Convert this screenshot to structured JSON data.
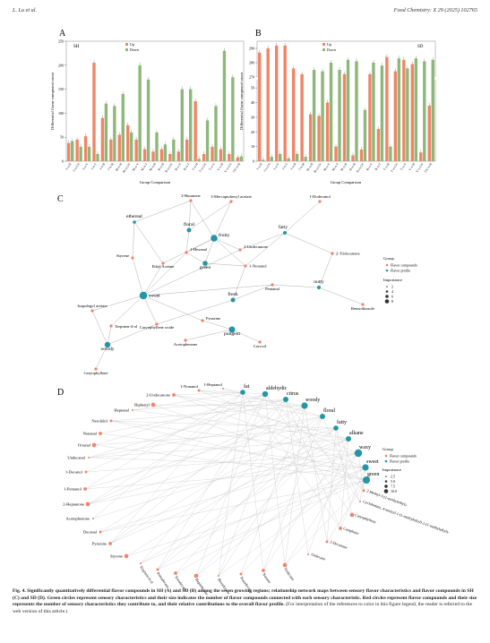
{
  "header": {
    "left": "L. Lu et al.",
    "right": "Food Chemistry: X 29 (2025) 102765"
  },
  "colors": {
    "up": "#f08566",
    "down": "#8db87a",
    "compound": "#f0826c",
    "profile": "#2196a6",
    "edge": "#c9c9c9"
  },
  "chart_data": [
    {
      "type": "bar",
      "panel_label": "A",
      "group_name": "SH",
      "ylabel": "Differential flavor compound count",
      "xlabel": "Group Comparison",
      "ylim": [
        0,
        250
      ],
      "yticks": [
        0,
        50,
        100,
        150,
        200,
        250
      ],
      "legend": [
        "Up",
        "Down"
      ],
      "categories": [
        "J vs H",
        "J vs GY",
        "J vs Y",
        "J vs T",
        "J vs B",
        "J vs M",
        "M vs H",
        "M vs GY",
        "M vs Y",
        "M vs T",
        "M vs B",
        "B vs H",
        "B vs GY",
        "B vs Y",
        "B vs T",
        "T vs H",
        "T vs GY",
        "T vs Y",
        "Y vs H",
        "Y vs GY",
        "GY vs H"
      ],
      "series": [
        {
          "name": "Up",
          "values": [
            38,
            45,
            52,
            205,
            90,
            45,
            55,
            75,
            45,
            25,
            20,
            25,
            15,
            20,
            45,
            125,
            15,
            30,
            25,
            15,
            8
          ]
        },
        {
          "name": "Down",
          "values": [
            42,
            30,
            30,
            15,
            120,
            115,
            140,
            60,
            200,
            170,
            60,
            35,
            45,
            150,
            150,
            5,
            85,
            115,
            230,
            175,
            10
          ]
        }
      ]
    },
    {
      "type": "bar",
      "panel_label": "B",
      "group_name": "SD",
      "ylabel": "Differential flavor compound count",
      "xlabel": "Group Comparison",
      "axis_break": [
        55,
        270
      ],
      "yticks": [
        0,
        10,
        20,
        30,
        40,
        50,
        270,
        280,
        290
      ],
      "legend": [
        "Up",
        "Down"
      ],
      "categories": [
        "J vs H",
        "J vs GY",
        "J vs Y",
        "J vs T",
        "J vs B",
        "J vs M",
        "M vs H",
        "M vs GY",
        "M vs Y",
        "M vs T",
        "M vs B",
        "B vs H",
        "B vs GY",
        "B vs Y",
        "B vs T",
        "T vs H",
        "T vs GY",
        "T vs Y",
        "Y vs H",
        "Y vs GY",
        "GY vs H"
      ],
      "series": [
        {
          "name": "Up",
          "values": [
            287,
            290,
            292,
            292,
            276,
            272,
            32,
            31,
            40,
            10,
            272,
            4,
            8,
            272,
            22,
            284,
            274,
            282,
            279,
            6,
            38
          ]
        },
        {
          "name": "Down",
          "values": [
            1,
            3,
            5,
            2,
            5,
            3,
            275,
            274,
            280,
            275,
            282,
            281,
            35,
            280,
            278,
            10,
            283,
            276,
            283,
            281,
            282
          ]
        }
      ]
    }
  ],
  "networks": {
    "C": {
      "label": "C",
      "legend_group_title": "Group",
      "legend_groups": [
        "Flavor compounds",
        "Flavor profile"
      ],
      "legend_importance_title": "Importance",
      "legend_importance": [
        "2",
        "4",
        "6",
        "8"
      ],
      "nodes": [
        {
          "name": "2-Butanone",
          "type": "compound"
        },
        {
          "name": "3-Mercaptohexyl acetate",
          "type": "compound"
        },
        {
          "name": "1-Dodecanol",
          "type": "compound"
        },
        {
          "name": "ethereal",
          "type": "profile"
        },
        {
          "name": "floral",
          "type": "profile"
        },
        {
          "name": "fruity",
          "type": "profile"
        },
        {
          "name": "fatty",
          "type": "profile"
        },
        {
          "name": "1-Hexanol",
          "type": "compound"
        },
        {
          "name": "2-Undecanone",
          "type": "compound"
        },
        {
          "name": "2-Tridecanone",
          "type": "compound"
        },
        {
          "name": "Styrene",
          "type": "compound"
        },
        {
          "name": "Ethyl Acetate",
          "type": "compound"
        },
        {
          "name": "green",
          "type": "profile"
        },
        {
          "name": "1-Nonanol",
          "type": "compound"
        },
        {
          "name": "nutty",
          "type": "profile"
        },
        {
          "name": "sweet",
          "type": "profile"
        },
        {
          "name": "Pentanal",
          "type": "compound"
        },
        {
          "name": "Isopulegol acetate",
          "type": "compound"
        },
        {
          "name": "fresh",
          "type": "profile"
        },
        {
          "name": "Benzothiazole",
          "type": "compound"
        },
        {
          "name": "Terpinen-4-ol",
          "type": "compound"
        },
        {
          "name": "Pyrazine",
          "type": "compound"
        },
        {
          "name": "Caryophyllene oxide",
          "type": "compound"
        },
        {
          "name": "pungent",
          "type": "profile"
        },
        {
          "name": "Acetophenone",
          "type": "compound"
        },
        {
          "name": "woody",
          "type": "profile"
        },
        {
          "name": "Carvcol",
          "type": "compound"
        },
        {
          "name": "Caryophyllene",
          "type": "compound"
        }
      ]
    },
    "D": {
      "label": "D",
      "legend_group_title": "Group",
      "legend_groups": [
        "Flavor compounds",
        "Flavor profile"
      ],
      "legend_importance_title": "Importance",
      "legend_importance": [
        "2.5",
        "5.0",
        "7.5",
        "10.0"
      ],
      "profiles": [
        "fat",
        "aldehydic",
        "citrus",
        "woody",
        "floral",
        "fatty",
        "alkane",
        "waxy",
        "sweet",
        "green"
      ],
      "compounds": [
        "1-Heptanol",
        "1-Nonanol",
        "2-Undecanone",
        "Biphenyl",
        "Heptanal",
        "Nerolidol",
        "Nonanal",
        "Octanal",
        "Undecanal",
        "1-Decanol",
        "1-Pentanol",
        "2-Heptanone",
        "Acetophenone",
        "Decanal",
        "Pyrazine",
        "Styrene",
        "Terpinen-4-ol",
        "Pentadecane",
        "Tetradecane",
        "Heptadecane",
        "Hexadecane",
        "Nonadecane",
        "Nonane",
        "Tridecane",
        "Undecane",
        "2-Decanone",
        "Camphene",
        "Caryophyllene",
        "Cyclobutane, 4-aminyl-1-(1-methylethyl)-1-(1-methylethyl)-",
        "2-Methyl-3-(1-methylethyl)-"
      ]
    }
  },
  "caption": {
    "label": "Fig. 4.",
    "bold_text": "Significantly quantitatively differential flavor compounds in SH (A) and SD (B) among the seven growing regions; relationship network maps between sensory flavor characteristics and flavor compounds in SH (C) and SD (D). Green circles represent sensory characteristics and their size indicates the number of flavor compounds connected with each sensory characteristic. Red circles represent flavor compounds and their size represents the number of sensory characteristics they contribute to, and their relative contributions to the overall flavor profile.",
    "normal_text": "(For interpretation of the references to color in this figure legend, the reader is referred to the web version of this article.)"
  }
}
